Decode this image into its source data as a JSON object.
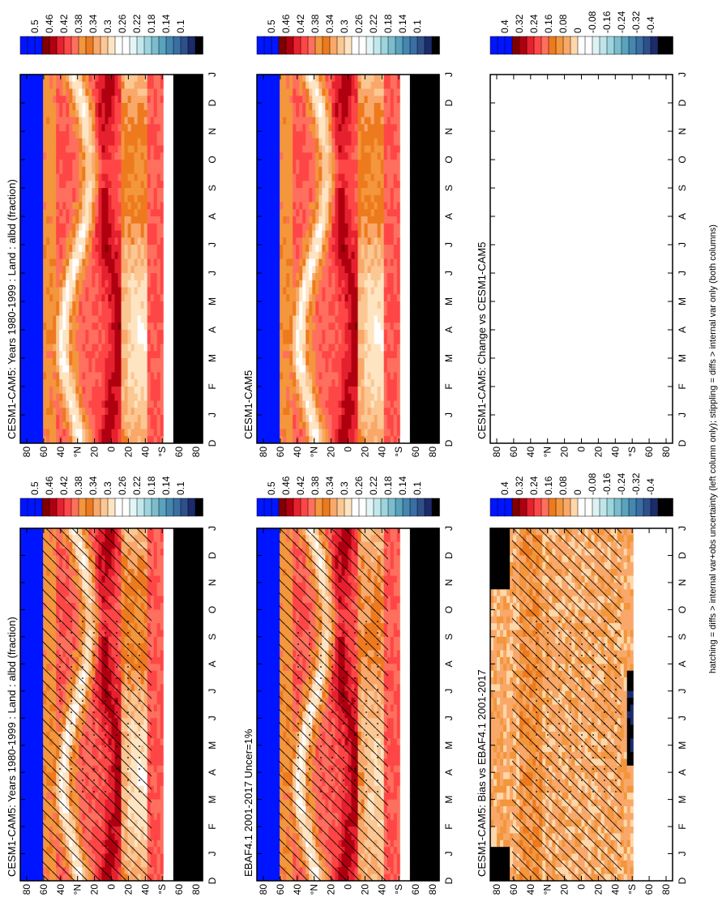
{
  "figure": {
    "footnote": "hatching = diffs > internal var+obs uncertainty (left column only); stippling = diffs > internal var only (both columns)"
  },
  "chart_data": [
    {
      "id": "model-left",
      "type": "heatmap",
      "title": "CESM1-CAM5: Years 1980-1999 : Land : albd (fraction)",
      "x_ticks": [
        "D",
        "J",
        "F",
        "M",
        "A",
        "M",
        "J",
        "J",
        "A",
        "S",
        "O",
        "N",
        "D",
        "J"
      ],
      "y_ticks": [
        "80",
        "60",
        "40",
        "°N",
        "20",
        "0",
        "20",
        "40",
        "°S",
        "60",
        "80"
      ],
      "colorbar": {
        "labels": [
          "0.5",
          "0.46",
          "0.42",
          "0.38",
          "0.34",
          "0.3",
          "0.26",
          "0.22",
          "0.18",
          "0.14",
          "0.1"
        ]
      },
      "hatching": true
    },
    {
      "id": "model-right",
      "type": "heatmap",
      "title": "CESM1-CAM5: Years 1980-1999 : Land : albd (fraction)",
      "x_ticks": [
        "D",
        "J",
        "F",
        "M",
        "A",
        "M",
        "J",
        "J",
        "A",
        "S",
        "O",
        "N",
        "D",
        "J"
      ],
      "y_ticks": [
        "80",
        "60",
        "40",
        "°N",
        "20",
        "0",
        "20",
        "40",
        "°S",
        "60",
        "80"
      ],
      "colorbar": {
        "labels": [
          "0.5",
          "0.46",
          "0.42",
          "0.38",
          "0.34",
          "0.3",
          "0.26",
          "0.22",
          "0.18",
          "0.14",
          "0.1"
        ]
      },
      "hatching": false
    },
    {
      "id": "obs-left",
      "type": "heatmap",
      "title": "EBAF4.1 2001-2017 Uncer=1%",
      "x_ticks": [
        "D",
        "J",
        "F",
        "M",
        "A",
        "M",
        "J",
        "J",
        "A",
        "S",
        "O",
        "N",
        "D",
        "J"
      ],
      "y_ticks": [
        "80",
        "60",
        "40",
        "°N",
        "20",
        "0",
        "20",
        "40",
        "°S",
        "60",
        "80"
      ],
      "colorbar": {
        "labels": [
          "0.5",
          "0.46",
          "0.42",
          "0.38",
          "0.34",
          "0.3",
          "0.26",
          "0.22",
          "0.18",
          "0.14",
          "0.1"
        ]
      },
      "hatching": true
    },
    {
      "id": "ref-right",
      "type": "heatmap",
      "title": "CESM1-CAM5",
      "x_ticks": [
        "D",
        "J",
        "F",
        "M",
        "A",
        "M",
        "J",
        "J",
        "A",
        "S",
        "O",
        "N",
        "D",
        "J"
      ],
      "y_ticks": [
        "80",
        "60",
        "40",
        "°N",
        "20",
        "0",
        "20",
        "40",
        "°S",
        "60",
        "80"
      ],
      "colorbar": {
        "labels": [
          "0.5",
          "0.46",
          "0.42",
          "0.38",
          "0.34",
          "0.3",
          "0.26",
          "0.22",
          "0.18",
          "0.14",
          "0.1"
        ]
      },
      "hatching": false
    },
    {
      "id": "bias-left",
      "type": "heatmap",
      "title": "CESM1-CAM5: Bias vs EBAF4.1 2001-2017",
      "x_ticks": [
        "D",
        "J",
        "F",
        "M",
        "A",
        "M",
        "J",
        "J",
        "A",
        "S",
        "O",
        "N",
        "D",
        "J"
      ],
      "y_ticks": [
        "80",
        "60",
        "40",
        "°N",
        "20",
        "0",
        "20",
        "40",
        "°S",
        "60",
        "80"
      ],
      "colorbar": {
        "labels": [
          "0.4",
          "0.32",
          "0.24",
          "0.16",
          "0.08",
          "0",
          "-0.08",
          "-0.16",
          "-0.24",
          "-0.32",
          "-0.4"
        ]
      },
      "hatching": true
    },
    {
      "id": "change-right",
      "type": "heatmap",
      "title": "CESM1-CAM5: Change vs CESM1-CAM5",
      "x_ticks": [
        "D",
        "J",
        "F",
        "M",
        "A",
        "M",
        "J",
        "J",
        "A",
        "S",
        "O",
        "N",
        "D",
        "J"
      ],
      "y_ticks": [
        "80",
        "60",
        "40",
        "°N",
        "20",
        "0",
        "20",
        "40",
        "°S",
        "60",
        "80"
      ],
      "colorbar": {
        "labels": [
          "0.4",
          "0.32",
          "0.24",
          "0.16",
          "0.08",
          "0",
          "-0.08",
          "-0.16",
          "-0.24",
          "-0.32",
          "-0.4"
        ]
      },
      "hatching": false,
      "empty": true
    }
  ],
  "palettes": {
    "abs": [
      "#0015ff",
      "#0015ff",
      "#0015ff",
      "#800000",
      "#b00010",
      "#e6212f",
      "#ff4646",
      "#ff6f5e",
      "#f3963c",
      "#ee7a1e",
      "#f9a86a",
      "#fbc793",
      "#ffe4c2",
      "#ffffff",
      "#ffffff",
      "#e3f6f7",
      "#c2e8ec",
      "#9dd4dd",
      "#7bbdcd",
      "#5aa3bd",
      "#4487b0",
      "#3b6ea3",
      "#2e5089",
      "#1b2b6b",
      "#000000"
    ],
    "diff": [
      "#0015ff",
      "#0015ff",
      "#0015ff",
      "#800000",
      "#b00010",
      "#e6212f",
      "#ff4646",
      "#ff6f5e",
      "#ee7a1e",
      "#f3963c",
      "#f9a86a",
      "#ffd7a8",
      "#ffffff",
      "#ffffff",
      "#ddf2f4",
      "#bfe5ea",
      "#9dd4dd",
      "#7bbdcd",
      "#5aa3bd",
      "#4487b0",
      "#3b6ea3",
      "#2e5089",
      "#1b2b6b",
      "#000000",
      "#000000"
    ]
  }
}
